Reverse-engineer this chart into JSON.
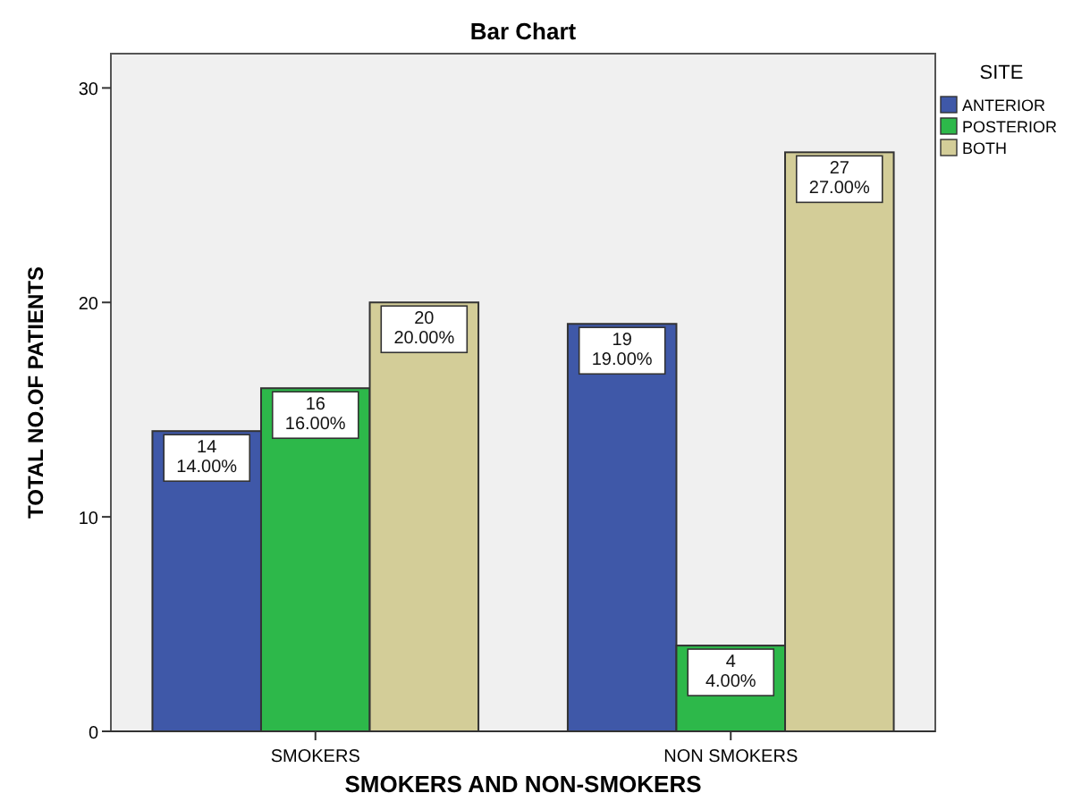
{
  "chart_data": {
    "type": "bar",
    "title": "Bar Chart",
    "xlabel": "SMOKERS AND NON-SMOKERS",
    "ylabel": "TOTAL NO.OF PATIENTS",
    "legend_title": "SITE",
    "categories": [
      "SMOKERS",
      "NON SMOKERS"
    ],
    "series": [
      {
        "name": "ANTERIOR",
        "color": "#3f58a8",
        "values": [
          14,
          19
        ],
        "value_labels": [
          "14\n14.00%",
          "19\n19.00%"
        ]
      },
      {
        "name": "POSTERIOR",
        "color": "#2db84a",
        "values": [
          16,
          4
        ],
        "value_labels": [
          "16\n16.00%",
          "4\n4.00%"
        ]
      },
      {
        "name": "BOTH",
        "color": "#d3cd98",
        "values": [
          20,
          27
        ],
        "value_labels": [
          "20\n20.00%",
          "27\n27.00%"
        ]
      }
    ],
    "ylim": [
      0,
      31.6
    ],
    "yticks": [
      0,
      10,
      20,
      30
    ],
    "grid": false,
    "legend": "top right"
  }
}
